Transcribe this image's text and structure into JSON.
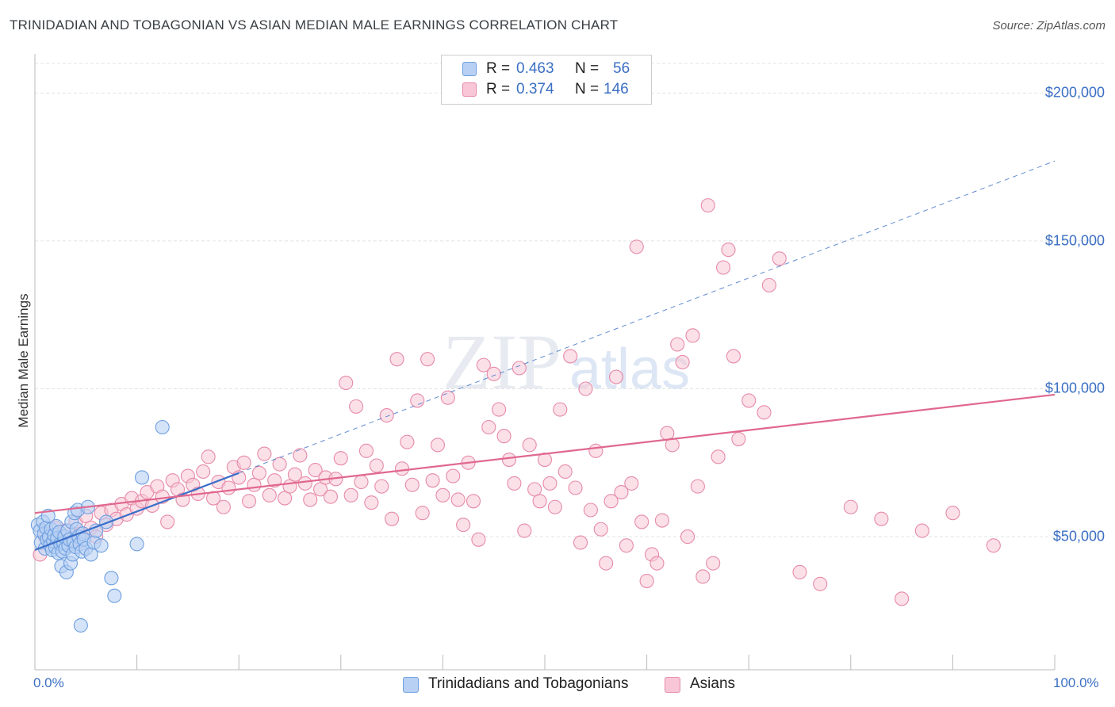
{
  "header": {
    "title": "TRINIDADIAN AND TOBAGONIAN VS ASIAN MEDIAN MALE EARNINGS CORRELATION CHART",
    "source": "Source: ZipAtlas.com"
  },
  "legend": {
    "series1": {
      "r_label": "R =",
      "r_value": "0.463",
      "n_label": "N =",
      "n_value": "56"
    },
    "series2": {
      "r_label": "R =",
      "r_value": "0.374",
      "n_label": "N =",
      "n_value": "146"
    }
  },
  "bottom_legend": {
    "series1": "Trinidadians and Tobagonians",
    "series2": "Asians"
  },
  "colors": {
    "blue_fill": "#b7d0f4",
    "blue_stroke": "#6e9fe0",
    "blue_line": "#3a6fc8",
    "pink_fill": "#f8c6d6",
    "pink_stroke": "#e68aaa",
    "pink_line": "#e0688f",
    "tick_text": "#3b6fc4",
    "grid": "#e3e3e3"
  },
  "watermark": {
    "zip": "ZIP",
    "atlas": "atlas"
  },
  "chart_data": {
    "type": "scatter",
    "title": "TRINIDADIAN AND TOBAGONIAN VS ASIAN MEDIAN MALE EARNINGS CORRELATION CHART",
    "xlabel": "",
    "ylabel": "Median Male Earnings",
    "xlim": [
      0,
      100
    ],
    "ylim": [
      5000,
      210000
    ],
    "x_tick_labels": [
      "0.0%",
      "100.0%"
    ],
    "y_ticks": [
      50000,
      100000,
      150000,
      200000
    ],
    "y_tick_labels": [
      "$50,000",
      "$100,000",
      "$150,000",
      "$200,000"
    ],
    "grid": true,
    "legend_position": "top-center",
    "series": [
      {
        "name": "Trinidadians and Tobagonians",
        "r": 0.463,
        "n": 56,
        "trend": {
          "x": [
            0,
            20
          ],
          "y": [
            45500,
            71500
          ],
          "extended_to": [
            100,
            177000
          ]
        },
        "points": [
          [
            0.3,
            54000
          ],
          [
            0.5,
            52000
          ],
          [
            0.6,
            48000
          ],
          [
            0.8,
            55000
          ],
          [
            0.9,
            51000
          ],
          [
            1.0,
            46000
          ],
          [
            1.1,
            53000
          ],
          [
            1.2,
            49000
          ],
          [
            1.3,
            57000
          ],
          [
            1.4,
            50000
          ],
          [
            1.5,
            47000
          ],
          [
            1.6,
            52500
          ],
          [
            1.7,
            45500
          ],
          [
            1.8,
            48500
          ],
          [
            1.9,
            50500
          ],
          [
            2.0,
            46500
          ],
          [
            2.1,
            53500
          ],
          [
            2.2,
            49500
          ],
          [
            2.3,
            44500
          ],
          [
            2.4,
            51500
          ],
          [
            2.5,
            47500
          ],
          [
            2.6,
            40000
          ],
          [
            2.7,
            45000
          ],
          [
            2.8,
            48000
          ],
          [
            2.9,
            50000
          ],
          [
            3.0,
            46000
          ],
          [
            3.1,
            38000
          ],
          [
            3.2,
            52000
          ],
          [
            3.3,
            47000
          ],
          [
            3.4,
            49000
          ],
          [
            3.5,
            41000
          ],
          [
            3.6,
            55000
          ],
          [
            3.7,
            44000
          ],
          [
            3.8,
            48500
          ],
          [
            3.9,
            58000
          ],
          [
            4.0,
            46500
          ],
          [
            4.1,
            52500
          ],
          [
            4.2,
            59000
          ],
          [
            4.3,
            50000
          ],
          [
            4.4,
            47500
          ],
          [
            4.5,
            20000
          ],
          [
            4.6,
            45000
          ],
          [
            4.7,
            51000
          ],
          [
            4.8,
            49000
          ],
          [
            5.0,
            46000
          ],
          [
            5.2,
            60000
          ],
          [
            5.5,
            44000
          ],
          [
            5.8,
            48000
          ],
          [
            6.0,
            52000
          ],
          [
            6.5,
            47000
          ],
          [
            7.0,
            55000
          ],
          [
            7.5,
            36000
          ],
          [
            7.8,
            30000
          ],
          [
            10.0,
            47500
          ],
          [
            10.5,
            70000
          ],
          [
            12.5,
            87000
          ]
        ]
      },
      {
        "name": "Asians",
        "r": 0.374,
        "n": 146,
        "trend": {
          "x": [
            0,
            100
          ],
          "y": [
            58000,
            98000
          ]
        },
        "points": [
          [
            0.5,
            44000
          ],
          [
            1.0,
            50000
          ],
          [
            1.5,
            47000
          ],
          [
            2.0,
            53000
          ],
          [
            2.5,
            49000
          ],
          [
            3.0,
            52000
          ],
          [
            3.5,
            48000
          ],
          [
            4.0,
            55000
          ],
          [
            4.5,
            51000
          ],
          [
            5.0,
            57000
          ],
          [
            5.5,
            53000
          ],
          [
            6.0,
            50000
          ],
          [
            6.5,
            58000
          ],
          [
            7.0,
            54000
          ],
          [
            7.5,
            59000
          ],
          [
            8.0,
            56000
          ],
          [
            8.5,
            61000
          ],
          [
            9.0,
            57500
          ],
          [
            9.5,
            63000
          ],
          [
            10.0,
            59500
          ],
          [
            10.5,
            62000
          ],
          [
            11.0,
            65000
          ],
          [
            11.5,
            60500
          ],
          [
            12.0,
            67000
          ],
          [
            12.5,
            63500
          ],
          [
            13.0,
            55000
          ],
          [
            13.5,
            69000
          ],
          [
            14.0,
            66000
          ],
          [
            14.5,
            62500
          ],
          [
            15.0,
            70500
          ],
          [
            15.5,
            67500
          ],
          [
            16.0,
            64500
          ],
          [
            16.5,
            72000
          ],
          [
            17.0,
            77000
          ],
          [
            17.5,
            63000
          ],
          [
            18.0,
            68500
          ],
          [
            18.5,
            60000
          ],
          [
            19.0,
            66500
          ],
          [
            19.5,
            73500
          ],
          [
            20.0,
            70000
          ],
          [
            20.5,
            75000
          ],
          [
            21.0,
            62000
          ],
          [
            21.5,
            67500
          ],
          [
            22.0,
            71500
          ],
          [
            22.5,
            78000
          ],
          [
            23.0,
            64000
          ],
          [
            23.5,
            69000
          ],
          [
            24.0,
            74500
          ],
          [
            24.5,
            63000
          ],
          [
            25.0,
            67000
          ],
          [
            25.5,
            71000
          ],
          [
            26.0,
            77500
          ],
          [
            26.5,
            68000
          ],
          [
            27.0,
            62500
          ],
          [
            27.5,
            72500
          ],
          [
            28.0,
            66000
          ],
          [
            28.5,
            70000
          ],
          [
            29.0,
            63500
          ],
          [
            29.5,
            69500
          ],
          [
            30.0,
            76500
          ],
          [
            30.5,
            102000
          ],
          [
            31.0,
            64000
          ],
          [
            31.5,
            94000
          ],
          [
            32.0,
            68500
          ],
          [
            32.5,
            79000
          ],
          [
            33.0,
            61500
          ],
          [
            33.5,
            74000
          ],
          [
            34.0,
            67000
          ],
          [
            34.5,
            91000
          ],
          [
            35.0,
            56000
          ],
          [
            35.5,
            110000
          ],
          [
            36.0,
            73000
          ],
          [
            36.5,
            82000
          ],
          [
            37.0,
            67500
          ],
          [
            37.5,
            96000
          ],
          [
            38.0,
            58000
          ],
          [
            38.5,
            110000
          ],
          [
            39.0,
            69000
          ],
          [
            39.5,
            81000
          ],
          [
            40.0,
            64000
          ],
          [
            40.5,
            97000
          ],
          [
            41.0,
            70500
          ],
          [
            41.5,
            62500
          ],
          [
            42.0,
            54000
          ],
          [
            42.5,
            75000
          ],
          [
            43.0,
            62000
          ],
          [
            43.5,
            49000
          ],
          [
            44.0,
            108000
          ],
          [
            44.5,
            87000
          ],
          [
            45.0,
            105000
          ],
          [
            45.5,
            93000
          ],
          [
            46.0,
            84000
          ],
          [
            46.5,
            76000
          ],
          [
            47.0,
            68000
          ],
          [
            47.5,
            107000
          ],
          [
            48.0,
            52000
          ],
          [
            48.5,
            81000
          ],
          [
            49.0,
            66000
          ],
          [
            49.5,
            62000
          ],
          [
            50.0,
            76000
          ],
          [
            50.5,
            68000
          ],
          [
            51.0,
            60000
          ],
          [
            51.5,
            93000
          ],
          [
            52.0,
            72000
          ],
          [
            52.5,
            111000
          ],
          [
            53.0,
            66500
          ],
          [
            53.5,
            48000
          ],
          [
            54.0,
            100000
          ],
          [
            54.5,
            59000
          ],
          [
            55.0,
            79000
          ],
          [
            55.5,
            52500
          ],
          [
            56.0,
            41000
          ],
          [
            56.5,
            62000
          ],
          [
            57.0,
            104000
          ],
          [
            57.5,
            65000
          ],
          [
            58.0,
            47000
          ],
          [
            58.5,
            68000
          ],
          [
            59.0,
            148000
          ],
          [
            59.5,
            55000
          ],
          [
            60.0,
            35000
          ],
          [
            60.5,
            44000
          ],
          [
            61.0,
            41000
          ],
          [
            61.5,
            55500
          ],
          [
            62.0,
            85000
          ],
          [
            62.5,
            81000
          ],
          [
            63.0,
            115000
          ],
          [
            63.5,
            109000
          ],
          [
            64.0,
            50000
          ],
          [
            64.5,
            118000
          ],
          [
            65.0,
            67000
          ],
          [
            65.5,
            36500
          ],
          [
            66.0,
            162000
          ],
          [
            66.5,
            41000
          ],
          [
            67.0,
            77000
          ],
          [
            67.5,
            141000
          ],
          [
            68.0,
            147000
          ],
          [
            68.5,
            111000
          ],
          [
            69.0,
            83000
          ],
          [
            70.0,
            96000
          ],
          [
            71.5,
            92000
          ],
          [
            72.0,
            135000
          ],
          [
            73.0,
            144000
          ],
          [
            75.0,
            38000
          ],
          [
            77.0,
            34000
          ],
          [
            80.0,
            60000
          ],
          [
            83.0,
            56000
          ],
          [
            85.0,
            29000
          ],
          [
            87.0,
            52000
          ],
          [
            90.0,
            58000
          ],
          [
            94.0,
            47000
          ]
        ]
      }
    ]
  }
}
